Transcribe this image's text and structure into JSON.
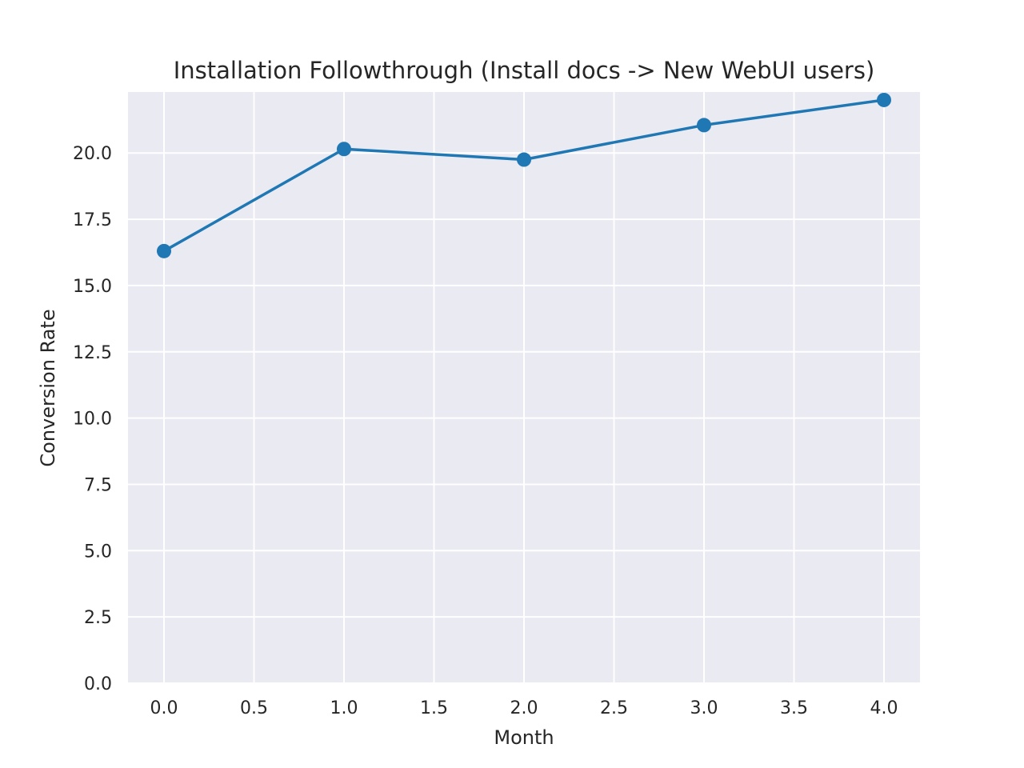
{
  "chart_data": {
    "type": "line",
    "title": "Installation Followthrough (Install docs -> New WebUI users)",
    "xlabel": "Month",
    "ylabel": "Conversion Rate",
    "xlim": [
      -0.2,
      4.2
    ],
    "ylim": [
      0,
      22.3
    ],
    "xticks": [
      0.0,
      0.5,
      1.0,
      1.5,
      2.0,
      2.5,
      3.0,
      3.5,
      4.0
    ],
    "xtick_labels": [
      "0.0",
      "0.5",
      "1.0",
      "1.5",
      "2.0",
      "2.5",
      "3.0",
      "3.5",
      "4.0"
    ],
    "yticks": [
      0.0,
      2.5,
      5.0,
      7.5,
      10.0,
      12.5,
      15.0,
      17.5,
      20.0
    ],
    "ytick_labels": [
      "0.0",
      "2.5",
      "5.0",
      "7.5",
      "10.0",
      "12.5",
      "15.0",
      "17.5",
      "20.0"
    ],
    "grid": true,
    "colors": {
      "series": "#1f77b4",
      "plot_background": "#eaeaf2",
      "grid": "#ffffff",
      "text": "#262626"
    },
    "series": [
      {
        "x": [
          0,
          1,
          2,
          3,
          4
        ],
        "values": [
          16.3,
          20.15,
          19.75,
          21.05,
          22.0
        ]
      }
    ]
  }
}
